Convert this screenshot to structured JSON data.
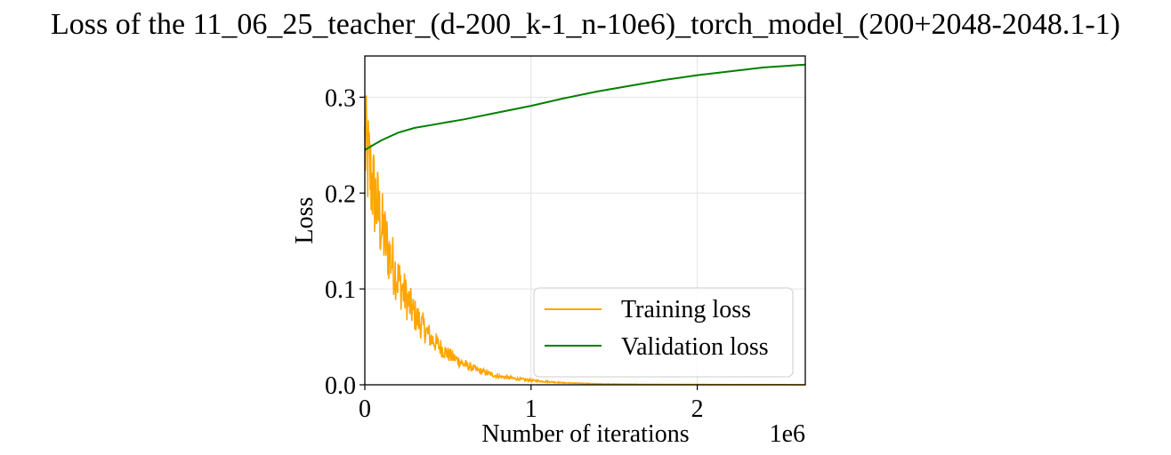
{
  "chart_data": {
    "type": "line",
    "title": "Loss of the 11_06_25_teacher_(d-200_k-1_n-10e6)_torch_model_(200+2048-2048.1-1)",
    "xlabel": "Number of iterations",
    "ylabel": "Loss",
    "x_offset_label": "1e6",
    "xlim": [
      0,
      2.65
    ],
    "ylim": [
      0,
      0.343
    ],
    "x_ticks": [
      0,
      1,
      2
    ],
    "x_tick_labels": [
      "0",
      "1",
      "2"
    ],
    "y_ticks": [
      0.0,
      0.1,
      0.2,
      0.3
    ],
    "y_tick_labels": [
      "0.0",
      "0.1",
      "0.2",
      "0.3"
    ],
    "grid": true,
    "legend_position": "lower-right",
    "series": [
      {
        "name": "Training loss",
        "color": "#ffa500",
        "x": [
          0,
          0.05,
          0.1,
          0.15,
          0.2,
          0.25,
          0.3,
          0.4,
          0.5,
          0.6,
          0.7,
          0.8,
          0.9,
          1.0,
          1.2,
          1.4,
          1.6,
          1.8,
          2.0,
          2.2,
          2.4,
          2.65
        ],
        "values": [
          0.25,
          0.205,
          0.165,
          0.135,
          0.11,
          0.09,
          0.073,
          0.048,
          0.032,
          0.021,
          0.014,
          0.009,
          0.0065,
          0.0045,
          0.002,
          0.001,
          0.0006,
          0.0004,
          0.0003,
          0.0002,
          0.0002,
          0.0001
        ]
      },
      {
        "name": "Validation loss",
        "color": "#008000",
        "x": [
          0,
          0.05,
          0.1,
          0.2,
          0.3,
          0.4,
          0.5,
          0.6,
          0.8,
          1.0,
          1.2,
          1.4,
          1.6,
          1.8,
          2.0,
          2.2,
          2.4,
          2.65
        ],
        "values": [
          0.245,
          0.25,
          0.255,
          0.263,
          0.268,
          0.271,
          0.274,
          0.277,
          0.284,
          0.291,
          0.299,
          0.306,
          0.312,
          0.318,
          0.323,
          0.327,
          0.331,
          0.334
        ]
      }
    ]
  }
}
